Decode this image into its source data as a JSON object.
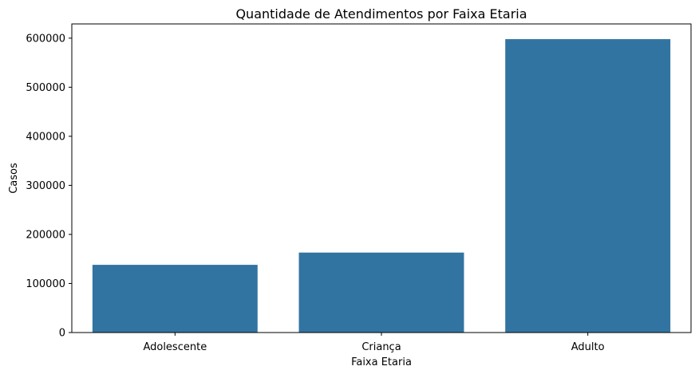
{
  "chart_data": {
    "type": "bar",
    "title": "Quantidade de Atendimentos por Faixa Etaria",
    "xlabel": "Faixa Etaria",
    "ylabel": "Casos",
    "categories": [
      "Adolescente",
      "Criança",
      "Adulto"
    ],
    "values": [
      138000,
      163000,
      598000
    ],
    "ylim": [
      0,
      629000
    ],
    "yticks": [
      0,
      100000,
      200000,
      300000,
      400000,
      500000,
      600000
    ],
    "ytick_labels": [
      "0",
      "100000",
      "200000",
      "300000",
      "400000",
      "500000",
      "600000"
    ],
    "grid": false,
    "legend": "none",
    "bar_color": "#3274a1"
  }
}
